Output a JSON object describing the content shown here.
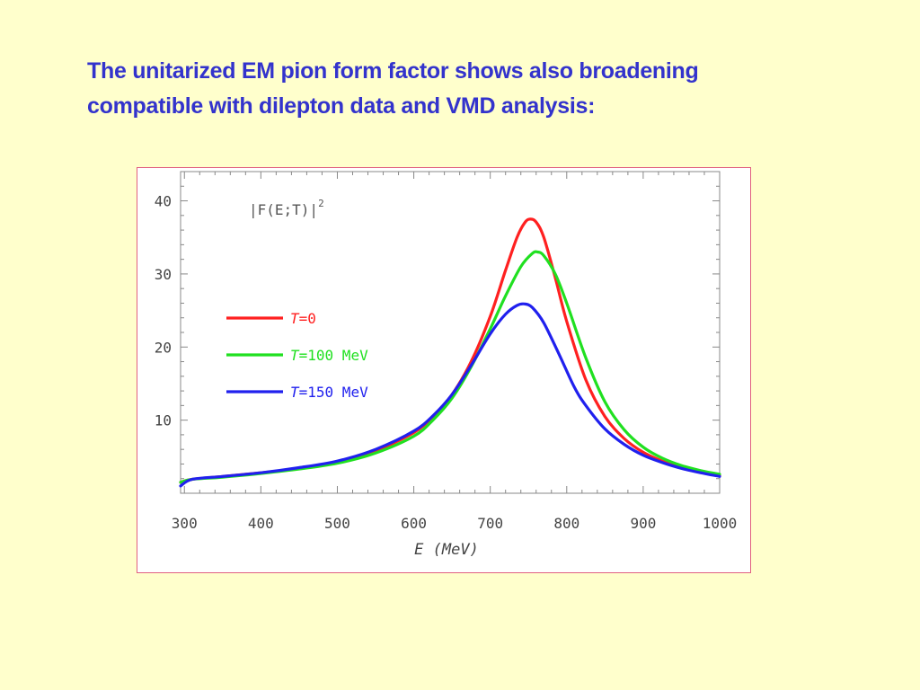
{
  "slide": {
    "title_line1": "The unitarized EM pion form factor shows also broadening",
    "title_line2": "compatible with dilepton data and VMD analysis:",
    "title_color": "#3333cc",
    "background_color": "#ffffcc"
  },
  "chart_data": {
    "type": "line",
    "inner_label_base": "|F(E;T)|",
    "inner_label_exp": "2",
    "xlabel": "E (MeV)",
    "xlim": [
      295,
      1000
    ],
    "ylim": [
      0,
      44
    ],
    "xticks": [
      300,
      400,
      500,
      600,
      700,
      800,
      900,
      1000
    ],
    "yticks": [
      10,
      20,
      30,
      40
    ],
    "grid": false,
    "legend_position": "left-middle",
    "series": [
      {
        "name": "T=0",
        "name_var": "T",
        "name_rest": "=0",
        "color": "#ff2020",
        "x": [
          295,
          310,
          350,
          400,
          450,
          500,
          550,
          600,
          625,
          650,
          675,
          700,
          720,
          735,
          745,
          752,
          760,
          770,
          785,
          800,
          825,
          850,
          875,
          900,
          925,
          950,
          975,
          1000
        ],
        "y": [
          1.5,
          1.9,
          2.3,
          2.8,
          3.4,
          4.3,
          5.8,
          8.3,
          10.5,
          13.5,
          18.0,
          24.2,
          30.5,
          35.0,
          37.0,
          37.5,
          37.1,
          35.0,
          29.5,
          23.5,
          15.5,
          10.5,
          7.5,
          5.6,
          4.4,
          3.5,
          2.9,
          2.4
        ]
      },
      {
        "name": "T=100 MeV",
        "name_var": "T",
        "name_rest": "=100 MeV",
        "color": "#20e020",
        "x": [
          295,
          310,
          350,
          400,
          450,
          500,
          550,
          600,
          625,
          650,
          675,
          700,
          720,
          740,
          755,
          762,
          770,
          785,
          800,
          825,
          850,
          875,
          900,
          925,
          950,
          975,
          1000
        ],
        "y": [
          1.5,
          1.9,
          2.2,
          2.7,
          3.3,
          4.1,
          5.5,
          7.8,
          10.0,
          13.0,
          17.3,
          22.5,
          27.0,
          31.0,
          32.8,
          33.0,
          32.5,
          30.0,
          26.0,
          18.5,
          12.5,
          8.7,
          6.3,
          4.8,
          3.8,
          3.1,
          2.6
        ]
      },
      {
        "name": "T=150 MeV",
        "name_var": "T",
        "name_rest": "=150 MeV",
        "color": "#2020ee",
        "x": [
          295,
          310,
          350,
          400,
          450,
          500,
          550,
          600,
          625,
          650,
          675,
          700,
          720,
          735,
          745,
          755,
          770,
          790,
          810,
          825,
          850,
          875,
          900,
          925,
          950,
          975,
          1000
        ],
        "y": [
          1.0,
          1.9,
          2.3,
          2.8,
          3.5,
          4.4,
          6.0,
          8.5,
          10.6,
          13.5,
          17.5,
          21.8,
          24.5,
          25.7,
          25.9,
          25.4,
          23.3,
          19.0,
          14.5,
          12.0,
          8.8,
          6.7,
          5.2,
          4.2,
          3.4,
          2.8,
          2.3
        ]
      }
    ]
  }
}
